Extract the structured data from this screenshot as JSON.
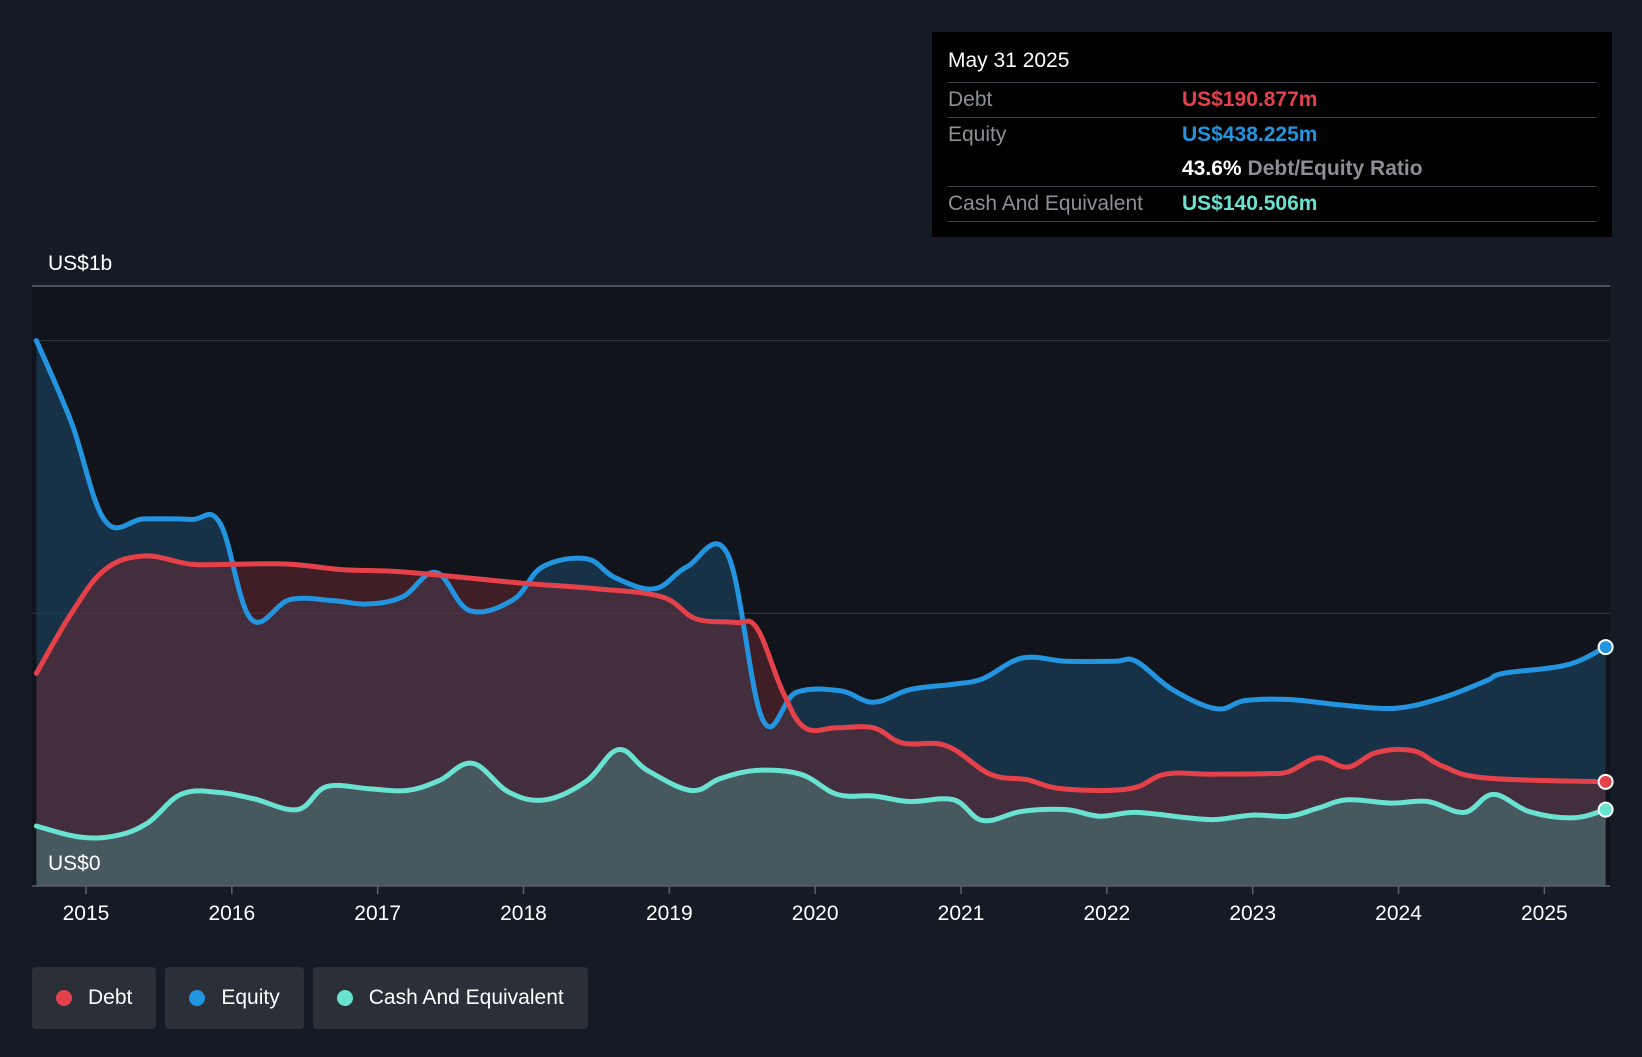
{
  "tooltip": {
    "date": "May 31 2025",
    "debt_label": "Debt",
    "debt_value": "US$190.877m",
    "equity_label": "Equity",
    "equity_value": "US$438.225m",
    "ratio_value": "43.6%",
    "ratio_label": "Debt/Equity Ratio",
    "cash_label": "Cash And Equivalent",
    "cash_value": "US$140.506m"
  },
  "legend": [
    {
      "label": "Debt",
      "color": "#e5414a"
    },
    {
      "label": "Equity",
      "color": "#2394e0"
    },
    {
      "label": "Cash And Equivalent",
      "color": "#6ae2d0"
    }
  ],
  "colors": {
    "background": "#151b24",
    "plot_background": "#11151b",
    "debt": "#e5414a",
    "equity": "#2394e0",
    "cash": "#6ae2d0"
  },
  "chart_data": {
    "type": "area",
    "title": "",
    "y_axis_labels": {
      "top": "US$1b",
      "bottom": "US$0"
    },
    "ylim": [
      0,
      1100
    ],
    "xlim": [
      2014.63,
      2025.45
    ],
    "x_ticks": [
      2015,
      2016,
      2017,
      2018,
      2019,
      2020,
      2021,
      2022,
      2023,
      2024,
      2025
    ],
    "x_tick_labels": [
      "2015",
      "2016",
      "2017",
      "2018",
      "2019",
      "2020",
      "2021",
      "2022",
      "2023",
      "2024",
      "2025"
    ],
    "gridlines": [
      0,
      500,
      1000
    ],
    "series": [
      {
        "name": "Equity",
        "points": [
          [
            2014.66,
            1000
          ],
          [
            2014.9,
            850
          ],
          [
            2015.13,
            670
          ],
          [
            2015.4,
            673
          ],
          [
            2015.72,
            672
          ],
          [
            2015.92,
            665
          ],
          [
            2016.13,
            490
          ],
          [
            2016.4,
            525
          ],
          [
            2016.7,
            523
          ],
          [
            2016.93,
            517
          ],
          [
            2017.17,
            530
          ],
          [
            2017.4,
            575
          ],
          [
            2017.63,
            505
          ],
          [
            2017.93,
            525
          ],
          [
            2018.13,
            585
          ],
          [
            2018.43,
            600
          ],
          [
            2018.63,
            565
          ],
          [
            2018.9,
            545
          ],
          [
            2019.12,
            585
          ],
          [
            2019.4,
            608
          ],
          [
            2019.64,
            305
          ],
          [
            2019.87,
            355
          ],
          [
            2020.17,
            358
          ],
          [
            2020.4,
            337
          ],
          [
            2020.65,
            360
          ],
          [
            2020.95,
            370
          ],
          [
            2021.15,
            380
          ],
          [
            2021.42,
            418
          ],
          [
            2021.72,
            412
          ],
          [
            2022.05,
            412
          ],
          [
            2022.2,
            412
          ],
          [
            2022.45,
            360
          ],
          [
            2022.75,
            325
          ],
          [
            2022.95,
            340
          ],
          [
            2023.25,
            342
          ],
          [
            2023.6,
            332
          ],
          [
            2023.98,
            326
          ],
          [
            2024.3,
            345
          ],
          [
            2024.6,
            376
          ],
          [
            2024.72,
            390
          ],
          [
            2025.15,
            405
          ],
          [
            2025.42,
            438
          ]
        ]
      },
      {
        "name": "Debt",
        "points": [
          [
            2014.66,
            390
          ],
          [
            2014.9,
            500
          ],
          [
            2015.13,
            580
          ],
          [
            2015.4,
            605
          ],
          [
            2015.72,
            590
          ],
          [
            2016.0,
            590
          ],
          [
            2016.4,
            590
          ],
          [
            2016.75,
            580
          ],
          [
            2017.1,
            577
          ],
          [
            2017.5,
            568
          ],
          [
            2018.0,
            555
          ],
          [
            2018.5,
            545
          ],
          [
            2018.95,
            530
          ],
          [
            2019.18,
            490
          ],
          [
            2019.45,
            483
          ],
          [
            2019.6,
            473
          ],
          [
            2019.78,
            355
          ],
          [
            2019.93,
            290
          ],
          [
            2020.15,
            290
          ],
          [
            2020.4,
            290
          ],
          [
            2020.6,
            262
          ],
          [
            2020.9,
            257
          ],
          [
            2021.2,
            205
          ],
          [
            2021.45,
            195
          ],
          [
            2021.7,
            178
          ],
          [
            2022.15,
            178
          ],
          [
            2022.4,
            205
          ],
          [
            2022.7,
            205
          ],
          [
            2023.1,
            206
          ],
          [
            2023.25,
            210
          ],
          [
            2023.45,
            235
          ],
          [
            2023.65,
            218
          ],
          [
            2023.85,
            245
          ],
          [
            2024.1,
            248
          ],
          [
            2024.3,
            220
          ],
          [
            2024.6,
            198
          ],
          [
            2025.42,
            191
          ]
        ]
      },
      {
        "name": "Cash And Equivalent",
        "points": [
          [
            2014.66,
            110
          ],
          [
            2014.95,
            90
          ],
          [
            2015.2,
            92
          ],
          [
            2015.42,
            115
          ],
          [
            2015.65,
            168
          ],
          [
            2015.9,
            172
          ],
          [
            2016.15,
            160
          ],
          [
            2016.45,
            140
          ],
          [
            2016.65,
            182
          ],
          [
            2016.95,
            178
          ],
          [
            2017.2,
            175
          ],
          [
            2017.42,
            193
          ],
          [
            2017.65,
            225
          ],
          [
            2017.9,
            172
          ],
          [
            2018.15,
            158
          ],
          [
            2018.43,
            192
          ],
          [
            2018.65,
            250
          ],
          [
            2018.85,
            212
          ],
          [
            2019.15,
            175
          ],
          [
            2019.35,
            197
          ],
          [
            2019.6,
            212
          ],
          [
            2019.9,
            205
          ],
          [
            2020.15,
            168
          ],
          [
            2020.4,
            165
          ],
          [
            2020.65,
            155
          ],
          [
            2020.95,
            158
          ],
          [
            2021.15,
            120
          ],
          [
            2021.42,
            137
          ],
          [
            2021.72,
            140
          ],
          [
            2021.95,
            128
          ],
          [
            2022.2,
            135
          ],
          [
            2022.55,
            125
          ],
          [
            2022.75,
            122
          ],
          [
            2023.0,
            130
          ],
          [
            2023.25,
            128
          ],
          [
            2023.45,
            143
          ],
          [
            2023.65,
            158
          ],
          [
            2023.95,
            152
          ],
          [
            2024.2,
            155
          ],
          [
            2024.45,
            135
          ],
          [
            2024.65,
            168
          ],
          [
            2024.9,
            136
          ],
          [
            2025.2,
            125
          ],
          [
            2025.42,
            140
          ]
        ]
      }
    ]
  }
}
